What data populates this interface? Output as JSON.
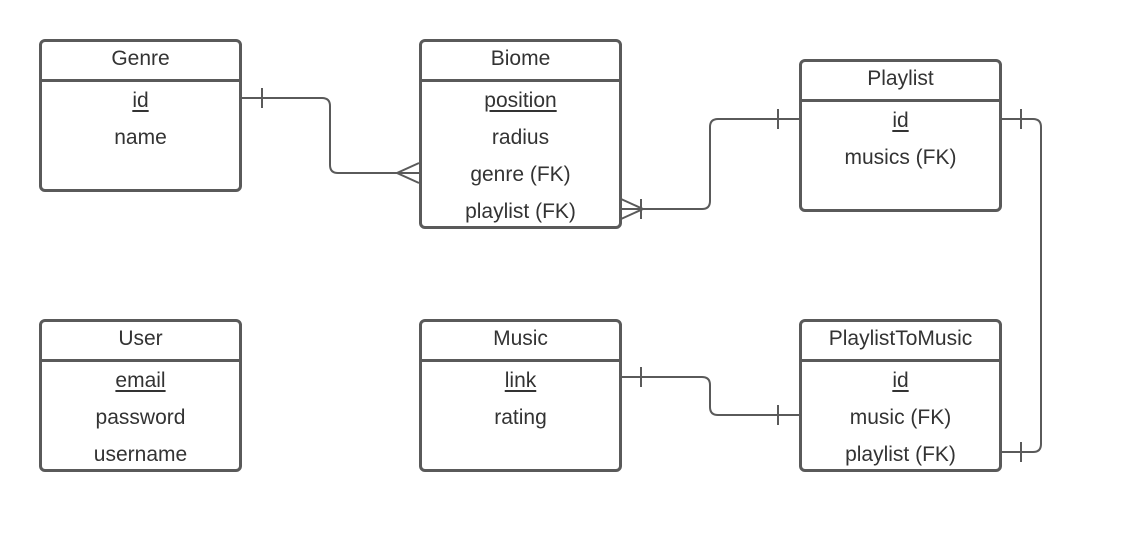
{
  "entities": {
    "genre": {
      "title": "Genre",
      "attributes": [
        {
          "label": "id",
          "pk": true
        },
        {
          "label": "name",
          "pk": false
        }
      ]
    },
    "biome": {
      "title": "Biome",
      "attributes": [
        {
          "label": "position",
          "pk": true
        },
        {
          "label": "radius",
          "pk": false
        },
        {
          "label": "genre (FK)",
          "pk": false
        },
        {
          "label": "playlist (FK)",
          "pk": false
        }
      ]
    },
    "playlist": {
      "title": "Playlist",
      "attributes": [
        {
          "label": "id",
          "pk": true
        },
        {
          "label": "musics (FK)",
          "pk": false
        }
      ]
    },
    "user": {
      "title": "User",
      "attributes": [
        {
          "label": "email",
          "pk": true
        },
        {
          "label": "password",
          "pk": false
        },
        {
          "label": "username",
          "pk": false
        }
      ]
    },
    "music": {
      "title": "Music",
      "attributes": [
        {
          "label": "link",
          "pk": true
        },
        {
          "label": "rating",
          "pk": false
        }
      ]
    },
    "playlist_to_music": {
      "title": "PlaylistToMusic",
      "attributes": [
        {
          "label": "id",
          "pk": true
        },
        {
          "label": "music (FK)",
          "pk": false
        },
        {
          "label": "playlist (FK)",
          "pk": false
        }
      ]
    }
  },
  "relationships": [
    {
      "from": "Genre",
      "to": "Biome",
      "from_cardinality": "one",
      "to_cardinality": "many"
    },
    {
      "from": "Biome",
      "to": "Playlist",
      "from_cardinality": "one-or-many",
      "to_cardinality": "one"
    },
    {
      "from": "Playlist",
      "to": "PlaylistToMusic",
      "from_cardinality": "one",
      "to_cardinality": "one"
    },
    {
      "from": "Music",
      "to": "PlaylistToMusic",
      "from_cardinality": "one",
      "to_cardinality": "one"
    }
  ],
  "colors": {
    "stroke": "#5a5a5a",
    "text": "#333333",
    "background": "#ffffff"
  }
}
